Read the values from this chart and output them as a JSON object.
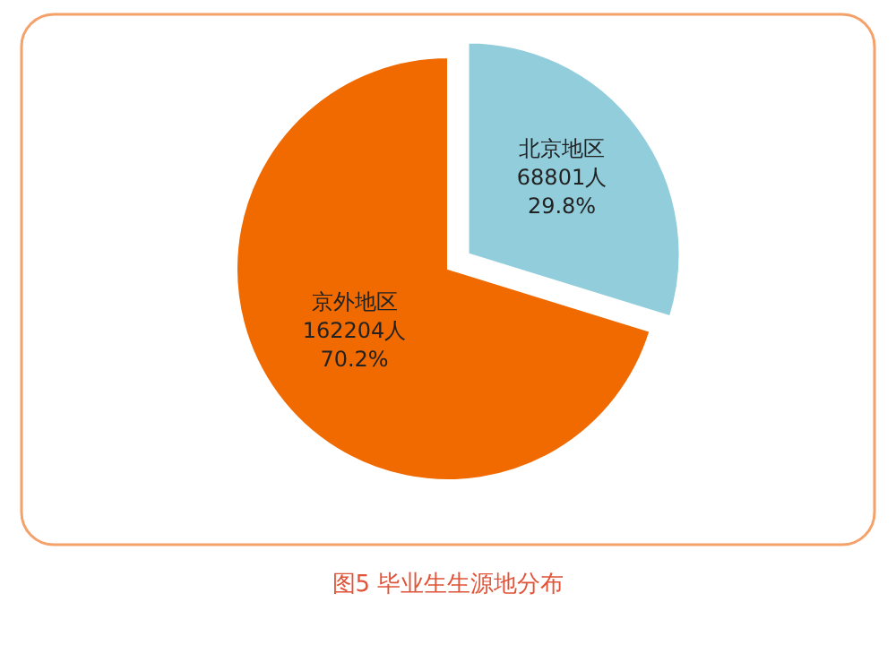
{
  "chart_data": {
    "type": "pie",
    "title": "图5  毕业生生源地分布",
    "categories": [
      "北京地区",
      "京外地区"
    ],
    "values": [
      68801,
      162204
    ],
    "value_labels": [
      "68801人 29.8%",
      "162204人 70.2%"
    ],
    "colors": [
      "#92cddc",
      "#f06a00"
    ]
  }
}
